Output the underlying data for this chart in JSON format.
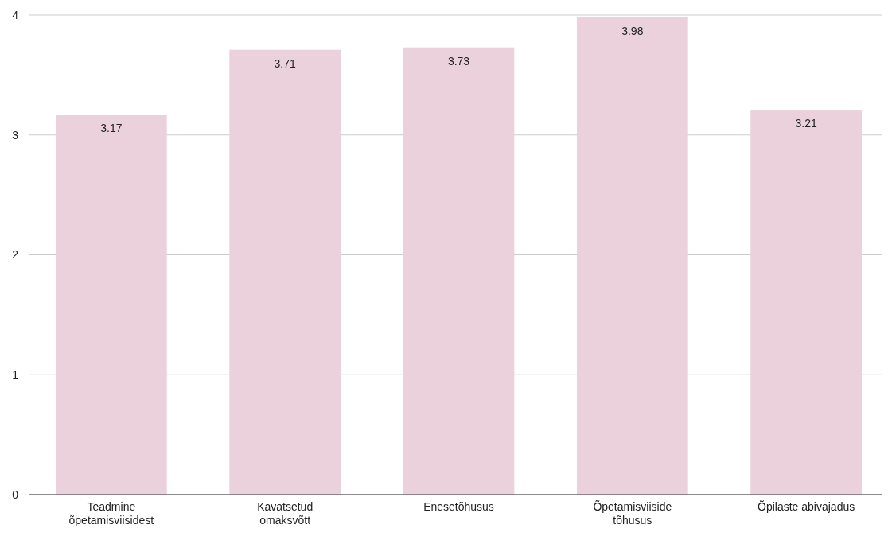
{
  "chart_data": {
    "type": "bar",
    "categories": [
      "Teadmine õpetamisviisidest",
      "Kavatsetud omaksvõtt",
      "Enesetõhusus",
      "Õpetamisviiside tõhusus",
      "Õpilaste abivajadus"
    ],
    "values": [
      3.17,
      3.71,
      3.73,
      3.98,
      3.21
    ],
    "color": "#ead1dc",
    "ylim": [
      0,
      4
    ],
    "yticks": [
      0,
      1,
      2,
      3,
      4
    ],
    "grid": "y",
    "data_labels": true
  }
}
